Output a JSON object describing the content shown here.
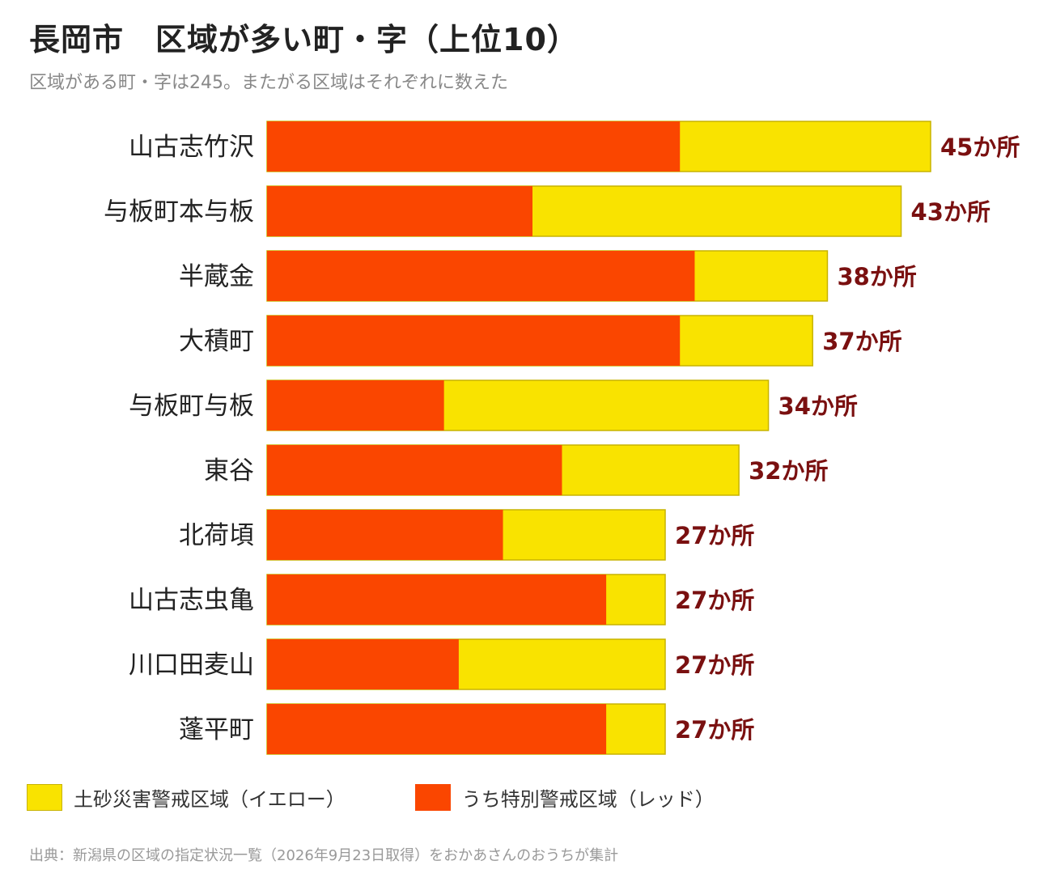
{
  "title": "長岡市　区域が多い町・字（上位10）",
  "subtitle": "区域がある町・字は245。またがる区域はそれぞれに数えた",
  "colors": {
    "yellow": "#F9E300",
    "yellow_border": "#C7B300",
    "red": "#FA4600",
    "label_total": "#7A1010"
  },
  "chart_data": {
    "type": "bar",
    "orientation": "horizontal",
    "stacked": true,
    "categories": [
      "山古志竹沢",
      "与板町本与板",
      "半蔵金",
      "大積町",
      "与板町与板",
      "東谷",
      "北荷頃",
      "山古志虫亀",
      "川口田麦山",
      "蓬平町"
    ],
    "totals": [
      45,
      43,
      38,
      37,
      34,
      32,
      27,
      27,
      27,
      27
    ],
    "total_labels": [
      "45か所",
      "43か所",
      "38か所",
      "37か所",
      "34か所",
      "32か所",
      "27か所",
      "27か所",
      "27か所",
      "27か所"
    ],
    "series": [
      {
        "name": "うち特別警戒区域（レッド）",
        "color": "#FA4600",
        "values": [
          28,
          18,
          29,
          28,
          12,
          20,
          16,
          23,
          13,
          23
        ]
      },
      {
        "name": "土砂災害警戒区域（イエロー）",
        "color": "#F9E300",
        "values": [
          17,
          25,
          9,
          9,
          22,
          12,
          11,
          4,
          14,
          4
        ]
      }
    ],
    "xlim": [
      0,
      45
    ],
    "grid": false,
    "legend_position": "bottom-left"
  },
  "legend": [
    {
      "label": "土砂災害警戒区域（イエロー）",
      "color": "#F9E300"
    },
    {
      "label": "うち特別警戒区域（レッド）",
      "color": "#FA4600"
    }
  ],
  "source": "出典：新潟県の区域の指定状況一覧（2026年9月23日取得）をおかあさんのおうちが集計"
}
